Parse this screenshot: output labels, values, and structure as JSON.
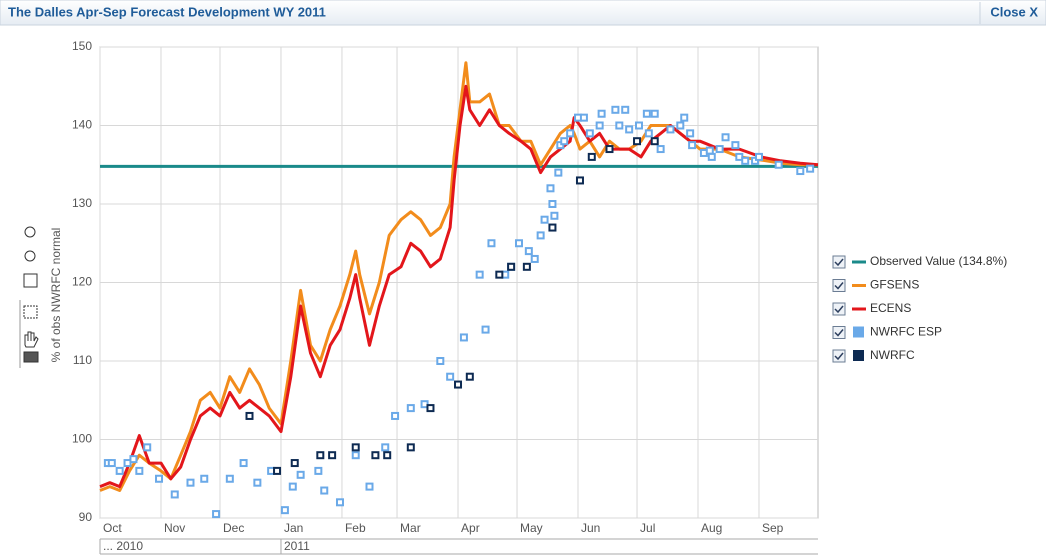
{
  "window": {
    "title": "The Dalles Apr-Sep Forecast Development WY 2011",
    "close": "Close X"
  },
  "chart_data": {
    "type": "line",
    "y_label": "% of obs NWRFC normal",
    "xlim": [
      0,
      365
    ],
    "ylim": [
      90,
      150
    ],
    "yticks": [
      90,
      100,
      110,
      120,
      130,
      140,
      150
    ],
    "xticks": [
      {
        "value": 0,
        "label": "Oct"
      },
      {
        "value": 31,
        "label": "Nov"
      },
      {
        "value": 61,
        "label": "Dec"
      },
      {
        "value": 92,
        "label": "Jan"
      },
      {
        "value": 123,
        "label": "Feb"
      },
      {
        "value": 151,
        "label": "Mar"
      },
      {
        "value": 182,
        "label": "Apr"
      },
      {
        "value": 212,
        "label": "May"
      },
      {
        "value": 243,
        "label": "Jun"
      },
      {
        "value": 273,
        "label": "Jul"
      },
      {
        "value": 304,
        "label": "Aug"
      },
      {
        "value": 335,
        "label": "Sep"
      }
    ],
    "year_labels": [
      {
        "value": 0,
        "label": "... 2010"
      },
      {
        "value": 92,
        "label": "2011"
      }
    ],
    "grid": true,
    "legend": "right",
    "observed": {
      "name": "Observed Value (134.8%)",
      "color": "#1a8a8a",
      "value": 134.8
    },
    "x": [
      0,
      5,
      10,
      15,
      20,
      25,
      31,
      36,
      41,
      46,
      51,
      56,
      61,
      66,
      71,
      76,
      81,
      86,
      92,
      97,
      102,
      107,
      112,
      117,
      122,
      127,
      130,
      132,
      137,
      142,
      147,
      153,
      158,
      163,
      168,
      173,
      178,
      180,
      183,
      186,
      188,
      193,
      198,
      203,
      208,
      214,
      219,
      224,
      229,
      234,
      239,
      241,
      244,
      249,
      254,
      259,
      264,
      269,
      275,
      280,
      285,
      290,
      295,
      300,
      305,
      315,
      325,
      336,
      346,
      356,
      365
    ],
    "series": [
      {
        "name": "GFSENS",
        "color": "#f28c1c",
        "values": [
          93.5,
          94,
          93.5,
          96,
          98,
          97,
          96,
          95,
          98,
          101,
          105,
          106,
          104,
          108,
          106,
          109,
          107,
          104,
          102,
          110,
          119,
          112,
          110,
          114,
          117,
          121,
          124,
          121,
          116,
          120,
          126,
          128,
          129,
          128,
          126,
          127,
          130,
          136,
          142,
          148,
          143,
          143,
          144,
          140,
          140,
          138,
          138,
          135,
          137,
          139,
          140,
          139,
          137,
          138,
          136,
          138,
          137,
          137,
          138,
          140,
          140,
          140,
          139,
          138,
          137,
          137,
          136,
          135.6,
          135.2,
          135,
          135
        ]
      },
      {
        "name": "ECENS",
        "color": "#e3161b",
        "values": [
          94,
          94.5,
          94,
          97,
          100.5,
          97,
          97,
          95,
          96.5,
          100,
          103,
          104,
          103,
          106,
          104,
          105,
          104,
          103,
          101,
          108,
          117,
          111,
          108,
          112,
          114,
          118,
          121,
          118,
          112,
          117,
          121,
          122,
          125,
          124,
          122,
          123,
          127,
          133,
          140,
          145,
          142,
          140,
          142,
          140,
          139,
          138,
          137,
          134,
          136,
          137,
          138,
          141,
          140,
          138,
          139,
          137,
          137,
          137,
          136,
          138,
          139,
          140,
          139,
          138,
          138,
          137,
          137,
          136,
          135.5,
          135.2,
          135
        ]
      }
    ],
    "points": [
      {
        "name": "NWRFC ESP",
        "color": "#6aa9e8",
        "x": [
          4,
          6,
          10,
          14,
          17,
          20,
          24,
          30,
          38,
          46,
          53,
          59,
          66,
          73,
          80,
          87,
          94,
          98,
          102,
          111,
          114,
          122,
          130,
          137,
          145,
          150,
          158,
          165,
          173,
          178,
          185,
          193,
          196,
          199,
          206,
          209,
          213,
          218,
          221,
          224,
          226,
          229,
          230,
          231,
          233,
          234,
          236,
          239,
          243,
          246,
          249,
          254,
          255,
          262,
          264,
          267,
          269,
          274,
          278,
          279,
          282,
          285,
          290,
          295,
          297,
          300,
          301,
          307,
          310,
          311,
          315,
          318,
          323,
          325,
          328,
          333,
          335,
          345,
          356,
          361
        ],
        "values": [
          97,
          97,
          96,
          97,
          97.5,
          96,
          99,
          95,
          93,
          94.5,
          95,
          90.5,
          95,
          97,
          94.5,
          96,
          91,
          94,
          95.5,
          96,
          93.5,
          92,
          98,
          94,
          99,
          103,
          104,
          104.5,
          110,
          108,
          113,
          121,
          114,
          125,
          121,
          122,
          125,
          124,
          123,
          126,
          128,
          132,
          130,
          128.5,
          134,
          137.5,
          138,
          139,
          141,
          141,
          139,
          140,
          141.5,
          142,
          140,
          142,
          139.5,
          140,
          141.5,
          139,
          141.5,
          137,
          139.5,
          140,
          141,
          139,
          137.5,
          136.5,
          136.8,
          136,
          137,
          138.5,
          137.5,
          136,
          135.5,
          135.5,
          136,
          135,
          134.2,
          134.5
        ]
      },
      {
        "name": "NWRFC",
        "color": "#0d2a52",
        "x": [
          76,
          90,
          99,
          112,
          118,
          130,
          140,
          146,
          158,
          168,
          182,
          188,
          203,
          209,
          217,
          230,
          244,
          250,
          259,
          273,
          282
        ],
        "values": [
          103,
          96,
          97,
          98,
          98,
          99,
          98,
          98,
          99,
          104,
          107,
          108,
          121,
          122,
          122,
          127,
          133,
          136,
          137,
          138,
          138
        ]
      }
    ]
  }
}
